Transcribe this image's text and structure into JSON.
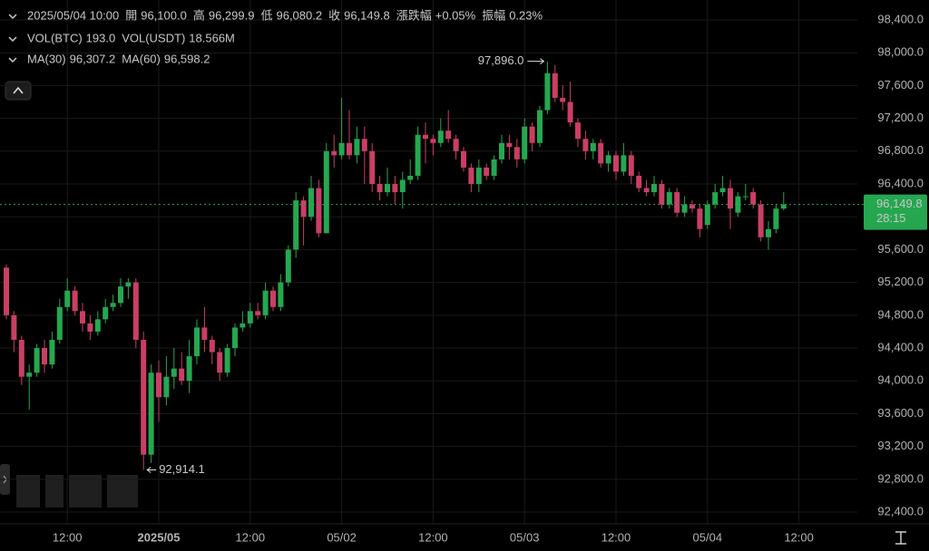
{
  "header": {
    "rows": [
      {
        "title": "2025/05/04 10:00",
        "items": [
          {
            "label": "開",
            "value": "96,100.0",
            "color": "#25a750"
          },
          {
            "label": "高",
            "value": "96,299.9",
            "color": "#25a750"
          },
          {
            "label": "低",
            "value": "96,080.2",
            "color": "#25a750"
          },
          {
            "label": "收",
            "value": "96,149.8",
            "color": "#25a750"
          },
          {
            "label": "漲跌幅",
            "value": "+0.05%",
            "color": "#25a750"
          },
          {
            "label": "振幅",
            "value": "0.23%",
            "color": "#25a750"
          }
        ]
      },
      {
        "items": [
          {
            "label": "VOL(BTC)",
            "value": "193.0",
            "color": "#f0a35a"
          },
          {
            "label": "VOL(USDT)",
            "value": "18.566M",
            "color": "#f0a35a"
          }
        ]
      },
      {
        "items": [
          {
            "label": "MA(30)",
            "value": "96,307.2",
            "color": "#f0a35a"
          },
          {
            "label": "MA(60)",
            "value": "96,598.2",
            "color": "#e8506e"
          }
        ]
      }
    ]
  },
  "chart_data": {
    "type": "candlestick",
    "up_color": "#25a750",
    "down_color": "#ca3f64",
    "grid": true,
    "categories": [
      null,
      null,
      null,
      null,
      null,
      null,
      null,
      null,
      "12:00",
      null,
      null,
      null,
      null,
      null,
      null,
      null,
      null,
      null,
      null,
      null,
      "2025/05",
      null,
      null,
      null,
      null,
      null,
      null,
      null,
      null,
      null,
      null,
      null,
      "12:00",
      null,
      null,
      null,
      null,
      null,
      null,
      null,
      null,
      null,
      null,
      null,
      "05/02",
      null,
      null,
      null,
      null,
      null,
      null,
      null,
      null,
      null,
      null,
      null,
      "12:00",
      null,
      null,
      null,
      null,
      null,
      null,
      null,
      null,
      null,
      null,
      null,
      "05/03",
      null,
      null,
      null,
      null,
      null,
      null,
      null,
      null,
      null,
      null,
      null,
      "12:00",
      null,
      null,
      null,
      null,
      null,
      null,
      null,
      null,
      null,
      null,
      null,
      "05/04",
      null,
      null,
      null,
      null,
      null,
      null,
      null,
      null,
      null,
      null,
      null,
      "12:00"
    ],
    "open": [
      95380,
      94800,
      94500,
      94050,
      94100,
      94400,
      94200,
      94500,
      94900,
      95100,
      94850,
      94700,
      94600,
      94750,
      94900,
      94950,
      95150,
      95200,
      94500,
      93100,
      94100,
      93800,
      94050,
      94150,
      94000,
      94300,
      94650,
      94500,
      94350,
      94100,
      94400,
      94650,
      94700,
      94850,
      94800,
      95100,
      94900,
      95200,
      95600,
      96200,
      96000,
      96350,
      95800,
      96800,
      96750,
      96900,
      96750,
      96950,
      96800,
      96400,
      96300,
      96400,
      96300,
      96450,
      96500,
      97000,
      96950,
      96900,
      97050,
      96950,
      96800,
      96600,
      96400,
      96600,
      96500,
      96700,
      96900,
      96850,
      96700,
      97100,
      96900,
      97300,
      97750,
      97450,
      97400,
      97150,
      96950,
      96800,
      96900,
      96650,
      96750,
      96550,
      96750,
      96500,
      96350,
      96300,
      96400,
      96150,
      96300,
      96050,
      96150,
      96100,
      95900,
      96150,
      96300,
      96350,
      96050,
      96250,
      96300,
      96150,
      95750,
      95850,
      96100.0,
      null,
      null
    ],
    "high": [
      95420,
      94850,
      94550,
      94200,
      94450,
      94500,
      94600,
      95000,
      95250,
      95150,
      94950,
      94800,
      94850,
      95000,
      95050,
      95250,
      95250,
      95250,
      94600,
      94200,
      94250,
      94300,
      94400,
      94350,
      94500,
      94750,
      94900,
      94550,
      94400,
      94450,
      94700,
      94850,
      94950,
      94950,
      95200,
      95150,
      95300,
      95650,
      96300,
      96250,
      96500,
      96450,
      96900,
      97000,
      97450,
      97300,
      97100,
      97100,
      96900,
      96500,
      96600,
      96500,
      96550,
      96700,
      97100,
      97150,
      97000,
      97200,
      97300,
      97000,
      96850,
      96650,
      96700,
      96650,
      96750,
      97000,
      97000,
      96950,
      97200,
      97150,
      97350,
      97896.0,
      97850,
      97600,
      97650,
      97200,
      97050,
      96950,
      96950,
      96800,
      96800,
      96900,
      96800,
      96550,
      96450,
      96500,
      96450,
      96350,
      96350,
      96250,
      96200,
      96150,
      96200,
      96400,
      96500,
      96450,
      96300,
      96400,
      96350,
      96200,
      95950,
      96150,
      96299.9,
      null,
      null
    ],
    "low": [
      94750,
      94350,
      93950,
      93650,
      94050,
      94100,
      94150,
      94450,
      94850,
      94800,
      94600,
      94500,
      94550,
      94700,
      94850,
      94900,
      95000,
      94400,
      92914.1,
      93000,
      93500,
      93700,
      93900,
      93950,
      93850,
      94200,
      94350,
      94200,
      94000,
      94050,
      94300,
      94600,
      94650,
      94750,
      94750,
      94850,
      94850,
      95150,
      95500,
      95650,
      95950,
      95750,
      95800,
      96600,
      96700,
      96700,
      96650,
      96400,
      96300,
      96200,
      96250,
      96150,
      96100,
      96400,
      96450,
      96650,
      96750,
      96850,
      96900,
      96700,
      96550,
      96300,
      96300,
      96450,
      96450,
      96650,
      96700,
      96600,
      96650,
      96800,
      96850,
      97250,
      97400,
      97300,
      97100,
      96850,
      96700,
      96700,
      96600,
      96550,
      96450,
      96500,
      96400,
      96300,
      96250,
      96250,
      96100,
      96100,
      96000,
      96000,
      96050,
      95750,
      95850,
      96100,
      96250,
      95850,
      96000,
      96200,
      96100,
      95700,
      95600,
      95800,
      96080.2,
      null,
      null
    ],
    "close": [
      94800,
      94500,
      94050,
      94100,
      94400,
      94200,
      94500,
      94900,
      95100,
      94850,
      94700,
      94600,
      94750,
      94900,
      94950,
      95150,
      95200,
      94500,
      93100,
      94100,
      93800,
      94050,
      94150,
      94000,
      94300,
      94650,
      94500,
      94350,
      94100,
      94400,
      94650,
      94700,
      94850,
      94800,
      95100,
      94900,
      95200,
      95600,
      96200,
      96000,
      96350,
      95800,
      96800,
      96750,
      96900,
      96750,
      96950,
      96800,
      96400,
      96300,
      96400,
      96300,
      96450,
      96500,
      97000,
      96950,
      96900,
      97050,
      96950,
      96800,
      96600,
      96400,
      96600,
      96500,
      96700,
      96900,
      96850,
      96700,
      97100,
      96900,
      97300,
      97750,
      97450,
      97400,
      97150,
      96950,
      96800,
      96900,
      96650,
      96750,
      96550,
      96750,
      96500,
      96350,
      96300,
      96400,
      96150,
      96300,
      96050,
      96150,
      96100,
      95850,
      96150,
      96300,
      96350,
      96100,
      96250,
      96250,
      96150,
      95750,
      95850,
      96100,
      96149.8,
      null,
      null
    ],
    "ylim": [
      92257,
      98643
    ],
    "yticks": [
      {
        "value": 92400,
        "label": "92,400.0"
      },
      {
        "value": 92800,
        "label": "92,800.0"
      },
      {
        "value": 93200,
        "label": "93,200.0"
      },
      {
        "value": 93600,
        "label": "93,600.0"
      },
      {
        "value": 94000,
        "label": "94,000.0"
      },
      {
        "value": 94400,
        "label": "94,400.0"
      },
      {
        "value": 94800,
        "label": "94,800.0"
      },
      {
        "value": 95200,
        "label": "95,200.0"
      },
      {
        "value": 95600,
        "label": "95,600.0"
      },
      {
        "value": 96000,
        "label": "96,000.0"
      },
      {
        "value": 96400,
        "label": "96,400.0"
      },
      {
        "value": 96800,
        "label": "96,800.0"
      },
      {
        "value": 97200,
        "label": "97,200.0"
      },
      {
        "value": 97600,
        "label": "97,600.0"
      },
      {
        "value": 98000,
        "label": "98,000.0"
      },
      {
        "value": 98400,
        "label": "98,400.0"
      }
    ],
    "high_marker": {
      "value": 97896.0,
      "label": "97,896.0"
    },
    "low_marker": {
      "value": 92914.1,
      "label": "92,914.1"
    },
    "last_price": {
      "value": 96149.8,
      "label": "96,149.8",
      "countdown": "28:15"
    }
  }
}
